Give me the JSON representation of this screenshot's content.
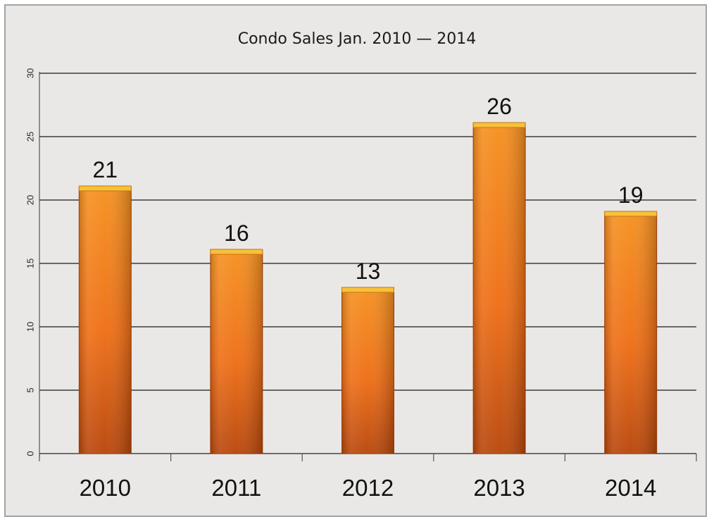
{
  "chart_data": {
    "type": "bar",
    "title": "Condo Sales Jan. 2010 — 2014",
    "xlabel": "",
    "ylabel": "",
    "categories": [
      "2010",
      "2011",
      "2012",
      "2013",
      "2014"
    ],
    "values": [
      21,
      16,
      13,
      26,
      19
    ],
    "data_labels": [
      "21",
      "16",
      "13",
      "26",
      "19"
    ],
    "ylim": [
      0,
      30
    ],
    "y_ticks": [
      "0",
      "5",
      "10",
      "15",
      "20",
      "25",
      "30"
    ],
    "grid": true,
    "legend": "none",
    "colors": {
      "bar_light": "#f5901e",
      "bar_mid": "#ee6d14",
      "bar_dark": "#b8460a",
      "bar_top": "#f7c13c",
      "background": "#e9e8e7",
      "gridline": "#3c3c3c"
    }
  }
}
